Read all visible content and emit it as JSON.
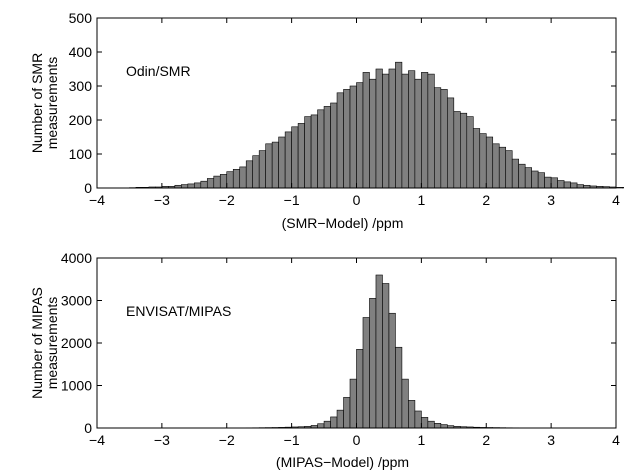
{
  "chart_data": [
    {
      "type": "bar",
      "annotation": "Odin/SMR",
      "xlabel": "(SMR−Model)    /ppm",
      "ylabel_lines": [
        "Number of SMR",
        "measurements"
      ],
      "xlim": [
        -4,
        4
      ],
      "ylim": [
        0,
        500
      ],
      "xticks": [
        -4,
        -3,
        -2,
        -1,
        0,
        1,
        2,
        3,
        4
      ],
      "xtick_labels": [
        "−4",
        "−3",
        "−2",
        "−1",
        "0",
        "1",
        "2",
        "3",
        "4"
      ],
      "yticks": [
        0,
        100,
        200,
        300,
        400,
        500
      ],
      "ytick_labels": [
        "0",
        "100",
        "200",
        "300",
        "400",
        "500"
      ],
      "bin_width": 0.1,
      "bin_start": -3.5,
      "values": [
        1,
        2,
        2,
        3,
        3,
        5,
        5,
        8,
        10,
        12,
        15,
        20,
        28,
        35,
        40,
        48,
        55,
        62,
        80,
        95,
        110,
        130,
        135,
        150,
        165,
        180,
        190,
        210,
        215,
        230,
        240,
        250,
        280,
        290,
        300,
        310,
        340,
        320,
        350,
        335,
        350,
        370,
        335,
        345,
        320,
        340,
        335,
        295,
        290,
        265,
        225,
        220,
        210,
        175,
        160,
        150,
        130,
        120,
        110,
        85,
        70,
        60,
        50,
        45,
        32,
        30,
        22,
        18,
        15,
        10,
        8,
        6,
        5,
        4,
        3,
        2,
        2,
        1
      ]
    },
    {
      "type": "bar",
      "annotation": "ENVISAT/MIPAS",
      "xlabel": "(MIPAS−Model)    /ppm",
      "ylabel_lines": [
        "Number of MIPAS",
        "measurements"
      ],
      "xlim": [
        -4,
        4
      ],
      "ylim": [
        0,
        4000
      ],
      "xticks": [
        -4,
        -3,
        -2,
        -1,
        0,
        1,
        2,
        3,
        4
      ],
      "xtick_labels": [
        "−4",
        "−3",
        "−2",
        "−1",
        "0",
        "1",
        "2",
        "3",
        "4"
      ],
      "yticks": [
        0,
        1000,
        2000,
        3000,
        4000
      ],
      "ytick_labels": [
        "0",
        "1000",
        "2000",
        "3000",
        "4000"
      ],
      "bin_width": 0.1,
      "bin_start": -2.0,
      "values": [
        2,
        3,
        4,
        5,
        6,
        8,
        10,
        12,
        15,
        20,
        25,
        30,
        40,
        60,
        100,
        160,
        260,
        420,
        720,
        1150,
        1850,
        2600,
        3050,
        3600,
        3400,
        2700,
        1900,
        1150,
        650,
        400,
        250,
        160,
        110,
        80,
        55,
        40,
        30,
        25,
        18,
        14,
        12,
        10,
        8,
        6,
        5,
        4,
        3,
        3,
        2,
        2
      ]
    }
  ],
  "colors": {
    "bar_fill": "#808080",
    "bar_edge": "#000000",
    "axis": "#000000"
  }
}
